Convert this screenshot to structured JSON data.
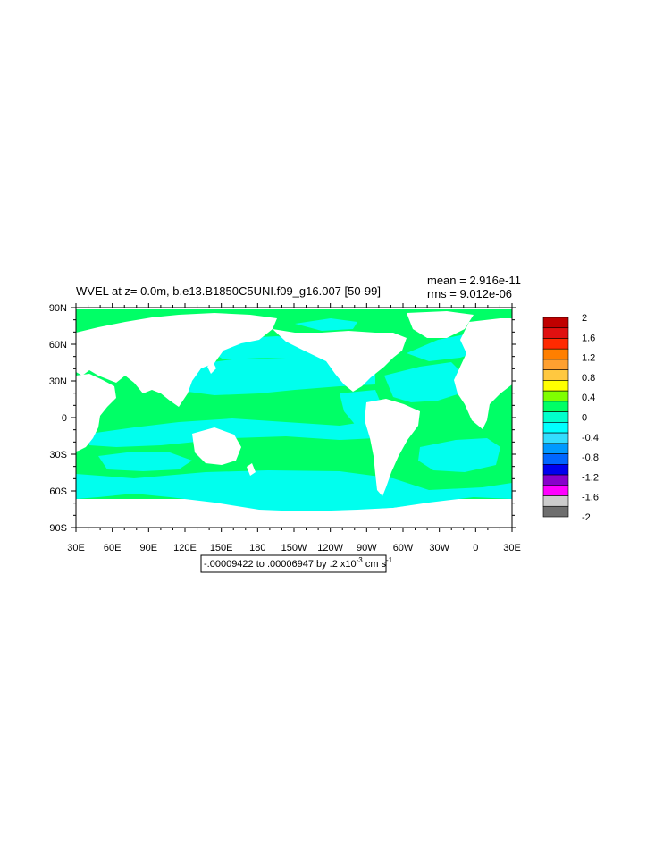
{
  "title": {
    "main": "WVEL at z=   0.0m, b.e13.B1850C5UNI.f09_g16.007 [50-99]",
    "mean": "mean = 2.916e-11",
    "rms": "rms = 9.012e-06"
  },
  "axes": {
    "lat_ticks": [
      "90N",
      "60N",
      "30N",
      "0",
      "30S",
      "60S",
      "90S"
    ],
    "lon_ticks": [
      "30E",
      "60E",
      "90E",
      "120E",
      "150E",
      "180",
      "150W",
      "120W",
      "90W",
      "60W",
      "30W",
      "0",
      "30E"
    ]
  },
  "info_box": {
    "text": "-.00009422 to .00006947 by .2 x10",
    "exp": "-3",
    "unit": " cm s",
    "unit_exp": "-1"
  },
  "colorbar": {
    "labels": [
      "2",
      "1.6",
      "1.2",
      "0.8",
      "0.4",
      "0",
      "-0.4",
      "-0.8",
      "-1.2",
      "-1.6",
      "-2"
    ],
    "colors_top_to_bottom": [
      "#c00000",
      "#e01010",
      "#ff2a00",
      "#ff7f00",
      "#ffa030",
      "#ffc840",
      "#ffff00",
      "#7fff00",
      "#00ff66",
      "#00ffcc",
      "#00ffff",
      "#33ddff",
      "#0099ff",
      "#0066ff",
      "#0000ee",
      "#8800cc",
      "#ff00ff",
      "#cccccc",
      "#6e6e6e"
    ]
  },
  "colors": {
    "positive_field": "#00ff66",
    "negative_field": "#00ffee",
    "land": "#ffffff"
  }
}
